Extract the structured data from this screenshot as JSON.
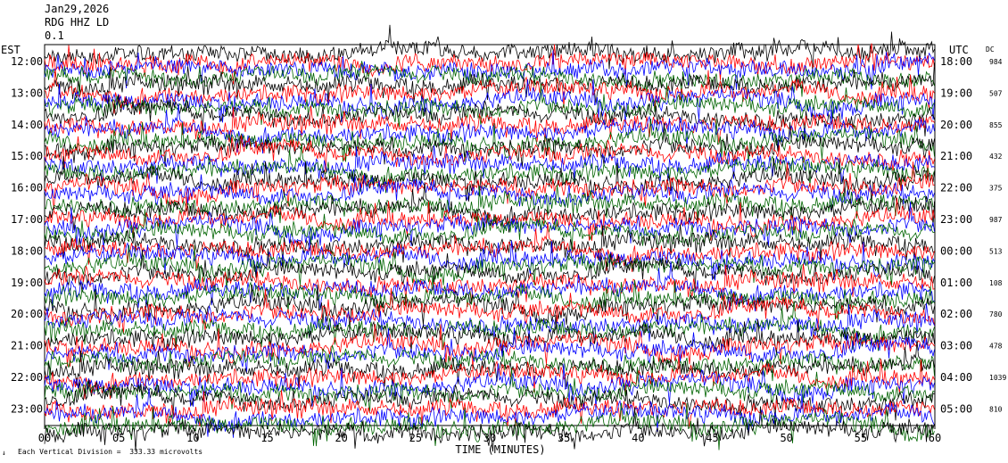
{
  "header": {
    "date": "Jan29,2026",
    "station": "RDG HHZ LD",
    "scale_note": "0.1"
  },
  "left_tz": "EST",
  "right_tz": "UTC",
  "dc_header": "DC",
  "footer": {
    "scale_text": "Each Vertical Division =  333.33 microvolts"
  },
  "colors": {
    "trace_cycle": [
      "#000000",
      "#ff0000",
      "#0000ff",
      "#006400"
    ],
    "grid": "#000000",
    "background": "#ffffff"
  },
  "chart_data": {
    "type": "line",
    "title": "Jan29,2026",
    "xlabel": "TIME (MINUTES)",
    "ylabel": "",
    "xlim": [
      0,
      60
    ],
    "x_ticks": [
      "00",
      "05",
      "10",
      "15",
      "20",
      "25",
      "30",
      "35",
      "40",
      "45",
      "50",
      "55",
      "60"
    ],
    "rows": [
      {
        "local": "12:00",
        "utc": "18:00",
        "dc": "984"
      },
      {
        "local": "13:00",
        "utc": "19:00",
        "dc": "507"
      },
      {
        "local": "14:00",
        "utc": "20:00",
        "dc": "855"
      },
      {
        "local": "15:00",
        "utc": "21:00",
        "dc": "432"
      },
      {
        "local": "16:00",
        "utc": "22:00",
        "dc": "375"
      },
      {
        "local": "17:00",
        "utc": "23:00",
        "dc": "987"
      },
      {
        "local": "18:00",
        "utc": "00:00",
        "dc": "513"
      },
      {
        "local": "19:00",
        "utc": "01:00",
        "dc": "108"
      },
      {
        "local": "20:00",
        "utc": "02:00",
        "dc": "780"
      },
      {
        "local": "21:00",
        "utc": "03:00",
        "dc": "478"
      },
      {
        "local": "22:00",
        "utc": "04:00",
        "dc": "1039"
      },
      {
        "local": "23:00",
        "utc": "05:00",
        "dc": "810"
      }
    ],
    "traces_per_hour": 4,
    "minutes_per_trace": 15,
    "first_trace_hour": "11:45"
  }
}
